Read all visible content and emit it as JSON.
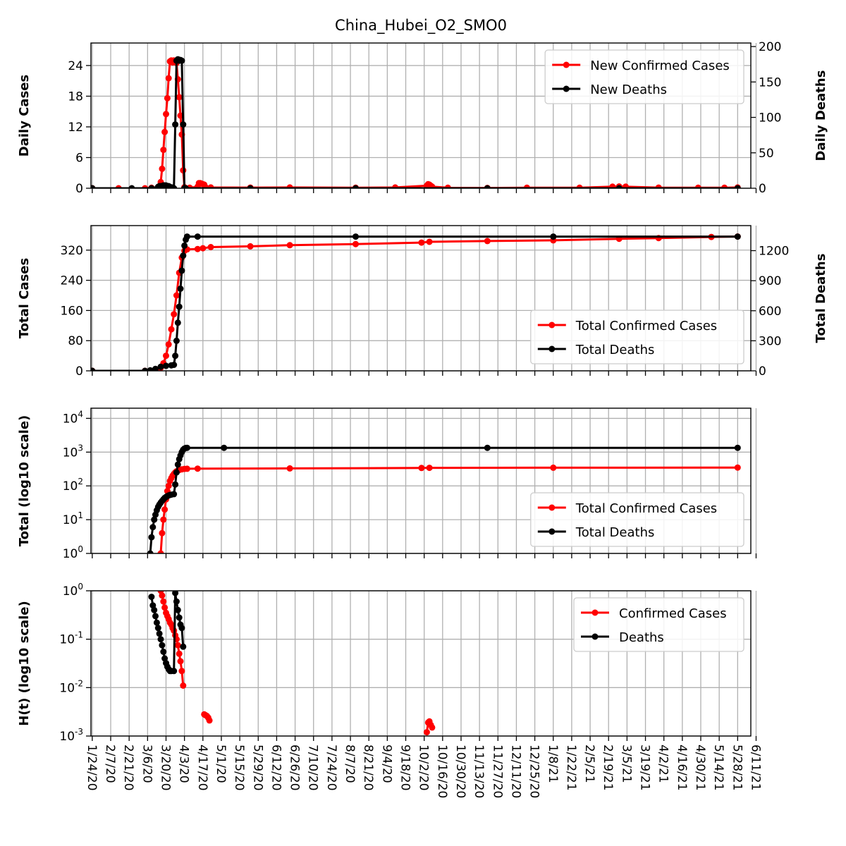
{
  "title": "China_Hubei_O2_SMO0",
  "x_tick_labels": [
    "1/24/20",
    "2/7/20",
    "2/21/20",
    "3/6/20",
    "3/20/20",
    "4/3/20",
    "4/17/20",
    "5/1/20",
    "5/15/20",
    "5/29/20",
    "6/12/20",
    "6/26/20",
    "7/10/20",
    "7/24/20",
    "8/7/20",
    "8/21/20",
    "9/4/20",
    "9/18/20",
    "10/2/20",
    "10/16/20",
    "10/30/20",
    "11/13/20",
    "11/27/20",
    "12/11/20",
    "12/25/20",
    "1/8/21",
    "1/22/21",
    "2/5/21",
    "2/19/21",
    "3/5/21",
    "3/19/21",
    "4/2/21",
    "4/16/21",
    "4/30/21",
    "5/14/21",
    "5/28/21",
    "6/11/21"
  ],
  "colors": {
    "cases": "#ff0000",
    "deaths": "#000000",
    "grid": "#b0b0b0"
  },
  "chart_data": [
    {
      "type": "line",
      "ylabel": "Daily Cases",
      "ylabel_right": "Daily Deaths",
      "x_start": "1/24/20",
      "x_range_days": [
        -1,
        500
      ],
      "yticks_left": [
        0,
        6,
        12,
        18,
        24
      ],
      "ylim_left": [
        0,
        28.4
      ],
      "yticks_right": [
        0,
        50,
        100,
        150,
        200
      ],
      "ylim_right": [
        0,
        205
      ],
      "legend": [
        "New Confirmed Cases",
        "New Deaths"
      ],
      "legend_loc": "upper right",
      "series": [
        {
          "name": "New Confirmed Cases",
          "axis": "left",
          "points": [
            [
              0,
              0
            ],
            [
              20,
              0
            ],
            [
              40,
              0
            ],
            [
              45,
              0.1
            ],
            [
              50,
              0.2
            ],
            [
              51,
              0.4
            ],
            [
              52,
              1.2
            ],
            [
              53,
              3.8
            ],
            [
              54,
              7.5
            ],
            [
              55,
              11
            ],
            [
              56,
              14.5
            ],
            [
              57,
              17.6
            ],
            [
              58,
              21.5
            ],
            [
              59,
              24.8
            ],
            [
              60,
              25
            ],
            [
              61,
              24.6
            ],
            [
              62,
              25
            ],
            [
              63,
              24.8
            ],
            [
              64,
              24.5
            ],
            [
              65,
              21.3
            ],
            [
              66,
              17.8
            ],
            [
              67,
              14.2
            ],
            [
              68,
              10.5
            ],
            [
              69,
              3.5
            ],
            [
              70,
              0.2
            ],
            [
              74,
              0.1
            ],
            [
              80,
              0.3
            ],
            [
              81,
              1
            ],
            [
              82,
              1
            ],
            [
              83,
              0.9
            ],
            [
              84,
              0.8
            ],
            [
              85,
              0.7
            ],
            [
              86,
              0.2
            ],
            [
              90,
              0.15
            ],
            [
              120,
              0.12
            ],
            [
              150,
              0.15
            ],
            [
              200,
              0.1
            ],
            [
              230,
              0.15
            ],
            [
              254,
              0.5
            ],
            [
              255,
              0.8
            ],
            [
              256,
              0.7
            ],
            [
              257,
              0.5
            ],
            [
              258,
              0.3
            ],
            [
              270,
              0.1
            ],
            [
              300,
              0.05
            ],
            [
              330,
              0.1
            ],
            [
              370,
              0.1
            ],
            [
              395,
              0.3
            ],
            [
              400,
              0.35
            ],
            [
              405,
              0.3
            ],
            [
              430,
              0.12
            ],
            [
              460,
              0.1
            ],
            [
              480,
              0.1
            ],
            [
              490,
              0.15
            ]
          ]
        },
        {
          "name": "New Deaths",
          "axis": "right",
          "points": [
            [
              0,
              0
            ],
            [
              30,
              0
            ],
            [
              45,
              0
            ],
            [
              50,
              2
            ],
            [
              51,
              3
            ],
            [
              52,
              3
            ],
            [
              53,
              3
            ],
            [
              54,
              4
            ],
            [
              55,
              4
            ],
            [
              56,
              4
            ],
            [
              57,
              3
            ],
            [
              58,
              3
            ],
            [
              59,
              2
            ],
            [
              60,
              1
            ],
            [
              61,
              1
            ],
            [
              62,
              0
            ],
            [
              63,
              90
            ],
            [
              64,
              180
            ],
            [
              65,
              182
            ],
            [
              66,
              180
            ],
            [
              67,
              181
            ],
            [
              68,
              180
            ],
            [
              69,
              90
            ],
            [
              70,
              0
            ],
            [
              71,
              0
            ],
            [
              120,
              0
            ],
            [
              200,
              0
            ],
            [
              300,
              0
            ],
            [
              400,
              0
            ],
            [
              490,
              0
            ]
          ]
        }
      ]
    },
    {
      "type": "line",
      "ylabel": "Total Cases",
      "ylabel_right": "Total Deaths",
      "yticks_left": [
        0,
        80,
        160,
        240,
        320
      ],
      "ylim_left": [
        0,
        385
      ],
      "yticks_right": [
        0,
        300,
        600,
        900,
        1200
      ],
      "ylim_right": [
        0,
        1450
      ],
      "legend": [
        "Total Confirmed Cases",
        "Total Deaths"
      ],
      "legend_loc": "lower right",
      "series": [
        {
          "name": "Total Confirmed Cases",
          "axis": "left",
          "points": [
            [
              0,
              0
            ],
            [
              40,
              0
            ],
            [
              48,
              2
            ],
            [
              52,
              8
            ],
            [
              54,
              20
            ],
            [
              56,
              40
            ],
            [
              58,
              70
            ],
            [
              60,
              110
            ],
            [
              62,
              150
            ],
            [
              64,
              200
            ],
            [
              66,
              260
            ],
            [
              68,
              300
            ],
            [
              70,
              318
            ],
            [
              72,
              322
            ],
            [
              80,
              323
            ],
            [
              84,
              325
            ],
            [
              90,
              328
            ],
            [
              120,
              330
            ],
            [
              150,
              333
            ],
            [
              200,
              336
            ],
            [
              250,
              340
            ],
            [
              256,
              342
            ],
            [
              300,
              344
            ],
            [
              350,
              346
            ],
            [
              400,
              350
            ],
            [
              430,
              352
            ],
            [
              470,
              355
            ],
            [
              490,
              356
            ]
          ]
        },
        {
          "name": "Total Deaths",
          "axis": "right",
          "points": [
            [
              0,
              0
            ],
            [
              40,
              0
            ],
            [
              44,
              5
            ],
            [
              48,
              20
            ],
            [
              52,
              40
            ],
            [
              56,
              50
            ],
            [
              60,
              55
            ],
            [
              62,
              60
            ],
            [
              63,
              150
            ],
            [
              64,
              300
            ],
            [
              65,
              480
            ],
            [
              66,
              640
            ],
            [
              67,
              820
            ],
            [
              68,
              1000
            ],
            [
              69,
              1150
            ],
            [
              70,
              1250
            ],
            [
              71,
              1310
            ],
            [
              72,
              1340
            ],
            [
              80,
              1340
            ],
            [
              200,
              1340
            ],
            [
              350,
              1340
            ],
            [
              490,
              1340
            ]
          ]
        }
      ]
    },
    {
      "type": "line",
      "ylabel": "Total (log10 scale)",
      "yscale": "log",
      "yticks": [
        1,
        10,
        100,
        1000,
        10000
      ],
      "ytick_labels": [
        "10^0",
        "10^1",
        "10^2",
        "10^3",
        "10^4"
      ],
      "ylim": [
        1,
        20000
      ],
      "legend": [
        "Total Confirmed Cases",
        "Total Deaths"
      ],
      "legend_loc": "lower right",
      "series": [
        {
          "name": "Total Confirmed Cases",
          "points": [
            [
              52,
              1
            ],
            [
              53,
              4
            ],
            [
              54,
              10
            ],
            [
              55,
              20
            ],
            [
              56,
              40
            ],
            [
              57,
              70
            ],
            [
              58,
              100
            ],
            [
              59,
              140
            ],
            [
              60,
              170
            ],
            [
              61,
              200
            ],
            [
              62,
              225
            ],
            [
              63,
              250
            ],
            [
              64,
              270
            ],
            [
              66,
              295
            ],
            [
              68,
              310
            ],
            [
              70,
              318
            ],
            [
              72,
              322
            ],
            [
              80,
              325
            ],
            [
              150,
              330
            ],
            [
              250,
              340
            ],
            [
              256,
              342
            ],
            [
              350,
              346
            ],
            [
              490,
              350
            ]
          ]
        },
        {
          "name": "Total Deaths",
          "points": [
            [
              44,
              1
            ],
            [
              45,
              3
            ],
            [
              46,
              6
            ],
            [
              47,
              10
            ],
            [
              48,
              14
            ],
            [
              49,
              19
            ],
            [
              50,
              24
            ],
            [
              51,
              28
            ],
            [
              52,
              32
            ],
            [
              53,
              36
            ],
            [
              54,
              40
            ],
            [
              55,
              44
            ],
            [
              56,
              47
            ],
            [
              57,
              50
            ],
            [
              58,
              52
            ],
            [
              59,
              54
            ],
            [
              60,
              55
            ],
            [
              62,
              57
            ],
            [
              63,
              110
            ],
            [
              64,
              250
            ],
            [
              65,
              430
            ],
            [
              66,
              620
            ],
            [
              67,
              800
            ],
            [
              68,
              1000
            ],
            [
              69,
              1180
            ],
            [
              70,
              1280
            ],
            [
              71,
              1330
            ],
            [
              72,
              1340
            ],
            [
              100,
              1340
            ],
            [
              300,
              1340
            ],
            [
              490,
              1340
            ]
          ]
        }
      ]
    },
    {
      "type": "scatter",
      "ylabel": "H(t) (log10 scale)",
      "yscale": "log",
      "yticks": [
        0.001,
        0.01,
        0.1,
        1
      ],
      "ytick_labels": [
        "10^-3",
        "10^-2",
        "10^-1",
        "10^0"
      ],
      "ylim": [
        0.001,
        1
      ],
      "legend": [
        "Confirmed Cases",
        "Deaths"
      ],
      "legend_loc": "upper right",
      "series": [
        {
          "name": "Confirmed Cases",
          "points": [
            [
              52,
              1
            ],
            [
              53,
              0.8
            ],
            [
              54,
              0.6
            ],
            [
              55,
              0.45
            ],
            [
              56,
              0.35
            ],
            [
              57,
              0.3
            ],
            [
              58,
              0.26
            ],
            [
              59,
              0.22
            ],
            [
              60,
              0.2
            ],
            [
              61,
              0.17
            ],
            [
              62,
              0.15
            ],
            [
              63,
              0.12
            ],
            [
              64,
              0.1
            ],
            [
              65,
              0.075
            ],
            [
              66,
              0.05
            ],
            [
              67,
              0.035
            ],
            [
              68,
              0.022
            ],
            [
              69,
              0.011
            ],
            [
              null,
              null
            ],
            [
              85,
              0.0028
            ],
            [
              86,
              0.0027
            ],
            [
              87,
              0.0026
            ],
            [
              88,
              0.0024
            ],
            [
              89,
              0.0021
            ],
            [
              null,
              null
            ],
            [
              254,
              0.0012
            ],
            [
              255,
              0.0019
            ],
            [
              256,
              0.002
            ],
            [
              257,
              0.0017
            ],
            [
              258,
              0.0015
            ]
          ]
        },
        {
          "name": "Deaths",
          "points": [
            [
              45,
              0.75
            ],
            [
              46,
              0.5
            ],
            [
              47,
              0.4
            ],
            [
              48,
              0.3
            ],
            [
              49,
              0.22
            ],
            [
              50,
              0.17
            ],
            [
              51,
              0.13
            ],
            [
              52,
              0.1
            ],
            [
              53,
              0.075
            ],
            [
              54,
              0.055
            ],
            [
              55,
              0.04
            ],
            [
              56,
              0.032
            ],
            [
              57,
              0.027
            ],
            [
              58,
              0.024
            ],
            [
              59,
              0.022
            ],
            [
              60,
              0.022
            ],
            [
              62,
              0.022
            ],
            [
              63,
              0.9
            ],
            [
              64,
              0.6
            ],
            [
              65,
              0.4
            ],
            [
              66,
              0.28
            ],
            [
              67,
              0.2
            ],
            [
              68,
              0.17
            ],
            [
              69,
              0.07
            ]
          ]
        }
      ]
    }
  ]
}
